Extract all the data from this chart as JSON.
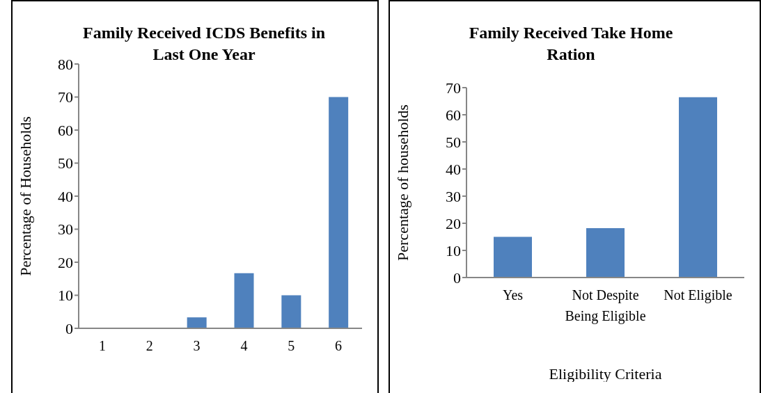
{
  "chart_data": [
    {
      "type": "bar",
      "title": "Family Received ICDS Benefits in Last One Year",
      "ylabel": "Percentage of Households",
      "categories": [
        "1",
        "2",
        "3",
        "4",
        "5",
        "6"
      ],
      "values": [
        0,
        0,
        3.3,
        16.7,
        10,
        70
      ],
      "color": "#4f81bd",
      "ylim": [
        0,
        80
      ],
      "yticks": [
        0,
        10,
        20,
        30,
        40,
        50,
        60,
        70,
        80
      ]
    },
    {
      "type": "bar",
      "title": "Family Received Take Home Ration",
      "xlabel": "Eligibility Criteria",
      "ylabel": "Percentage of households",
      "categories": [
        "Yes",
        "Not Despite Being Eligible",
        "Not Eligible"
      ],
      "values": [
        15,
        18.2,
        66.5
      ],
      "color": "#4f81bd",
      "ylim": [
        0,
        70
      ],
      "yticks": [
        0,
        10,
        20,
        30,
        40,
        50,
        60,
        70
      ]
    }
  ]
}
